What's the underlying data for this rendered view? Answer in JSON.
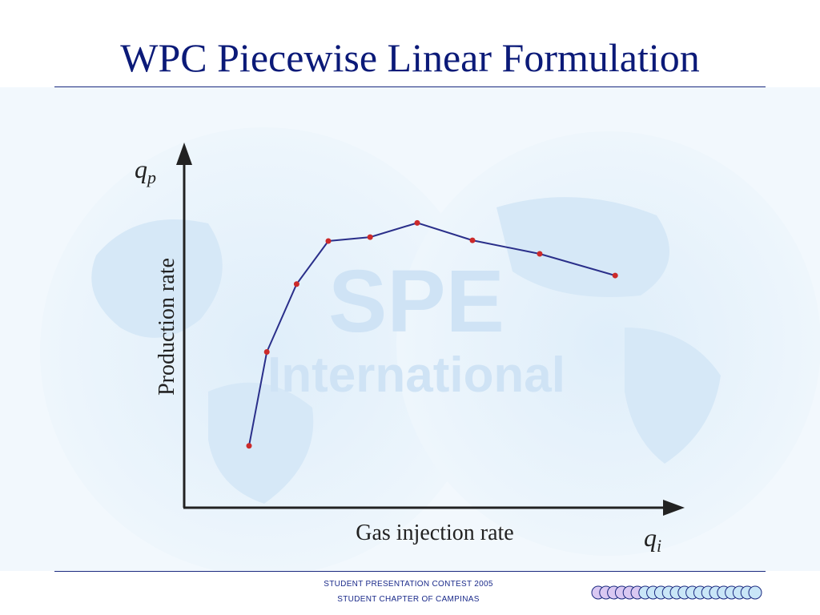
{
  "slide": {
    "title": "WPC Piecewise Linear Formulation",
    "watermark": {
      "line1": "SPE",
      "line2": "International"
    },
    "footer": {
      "line1": "STUDENT PRESENTATION CONTEST 2005",
      "line2": "STUDENT CHAPTER OF CAMPINAS"
    }
  },
  "colors": {
    "title": "#0b1a78",
    "curve": "#2a2f8a",
    "points": "#cc2a2a",
    "axes": "#222222",
    "rule": "#1b2a80",
    "footer": "#1a2a8a"
  },
  "chart_data": {
    "type": "line",
    "title": "",
    "xlabel": "Gas injection rate",
    "ylabel": "Production rate",
    "x_symbol": {
      "base": "q",
      "sub": "i"
    },
    "y_symbol": {
      "base": "q",
      "sub": "p"
    },
    "x_ticks_shown": false,
    "y_ticks_shown": false,
    "grid": false,
    "legend": "none",
    "xlim": [
      0,
      100
    ],
    "ylim": [
      0,
      100
    ],
    "series": [
      {
        "x": [
          13.5,
          17.2,
          23.4,
          30.0,
          38.7,
          48.5,
          60.0,
          74.0,
          89.7
        ],
        "y": [
          17.4,
          43.8,
          62.9,
          75.0,
          76.1,
          80.1,
          75.2,
          71.4,
          65.3
        ]
      }
    ]
  }
}
